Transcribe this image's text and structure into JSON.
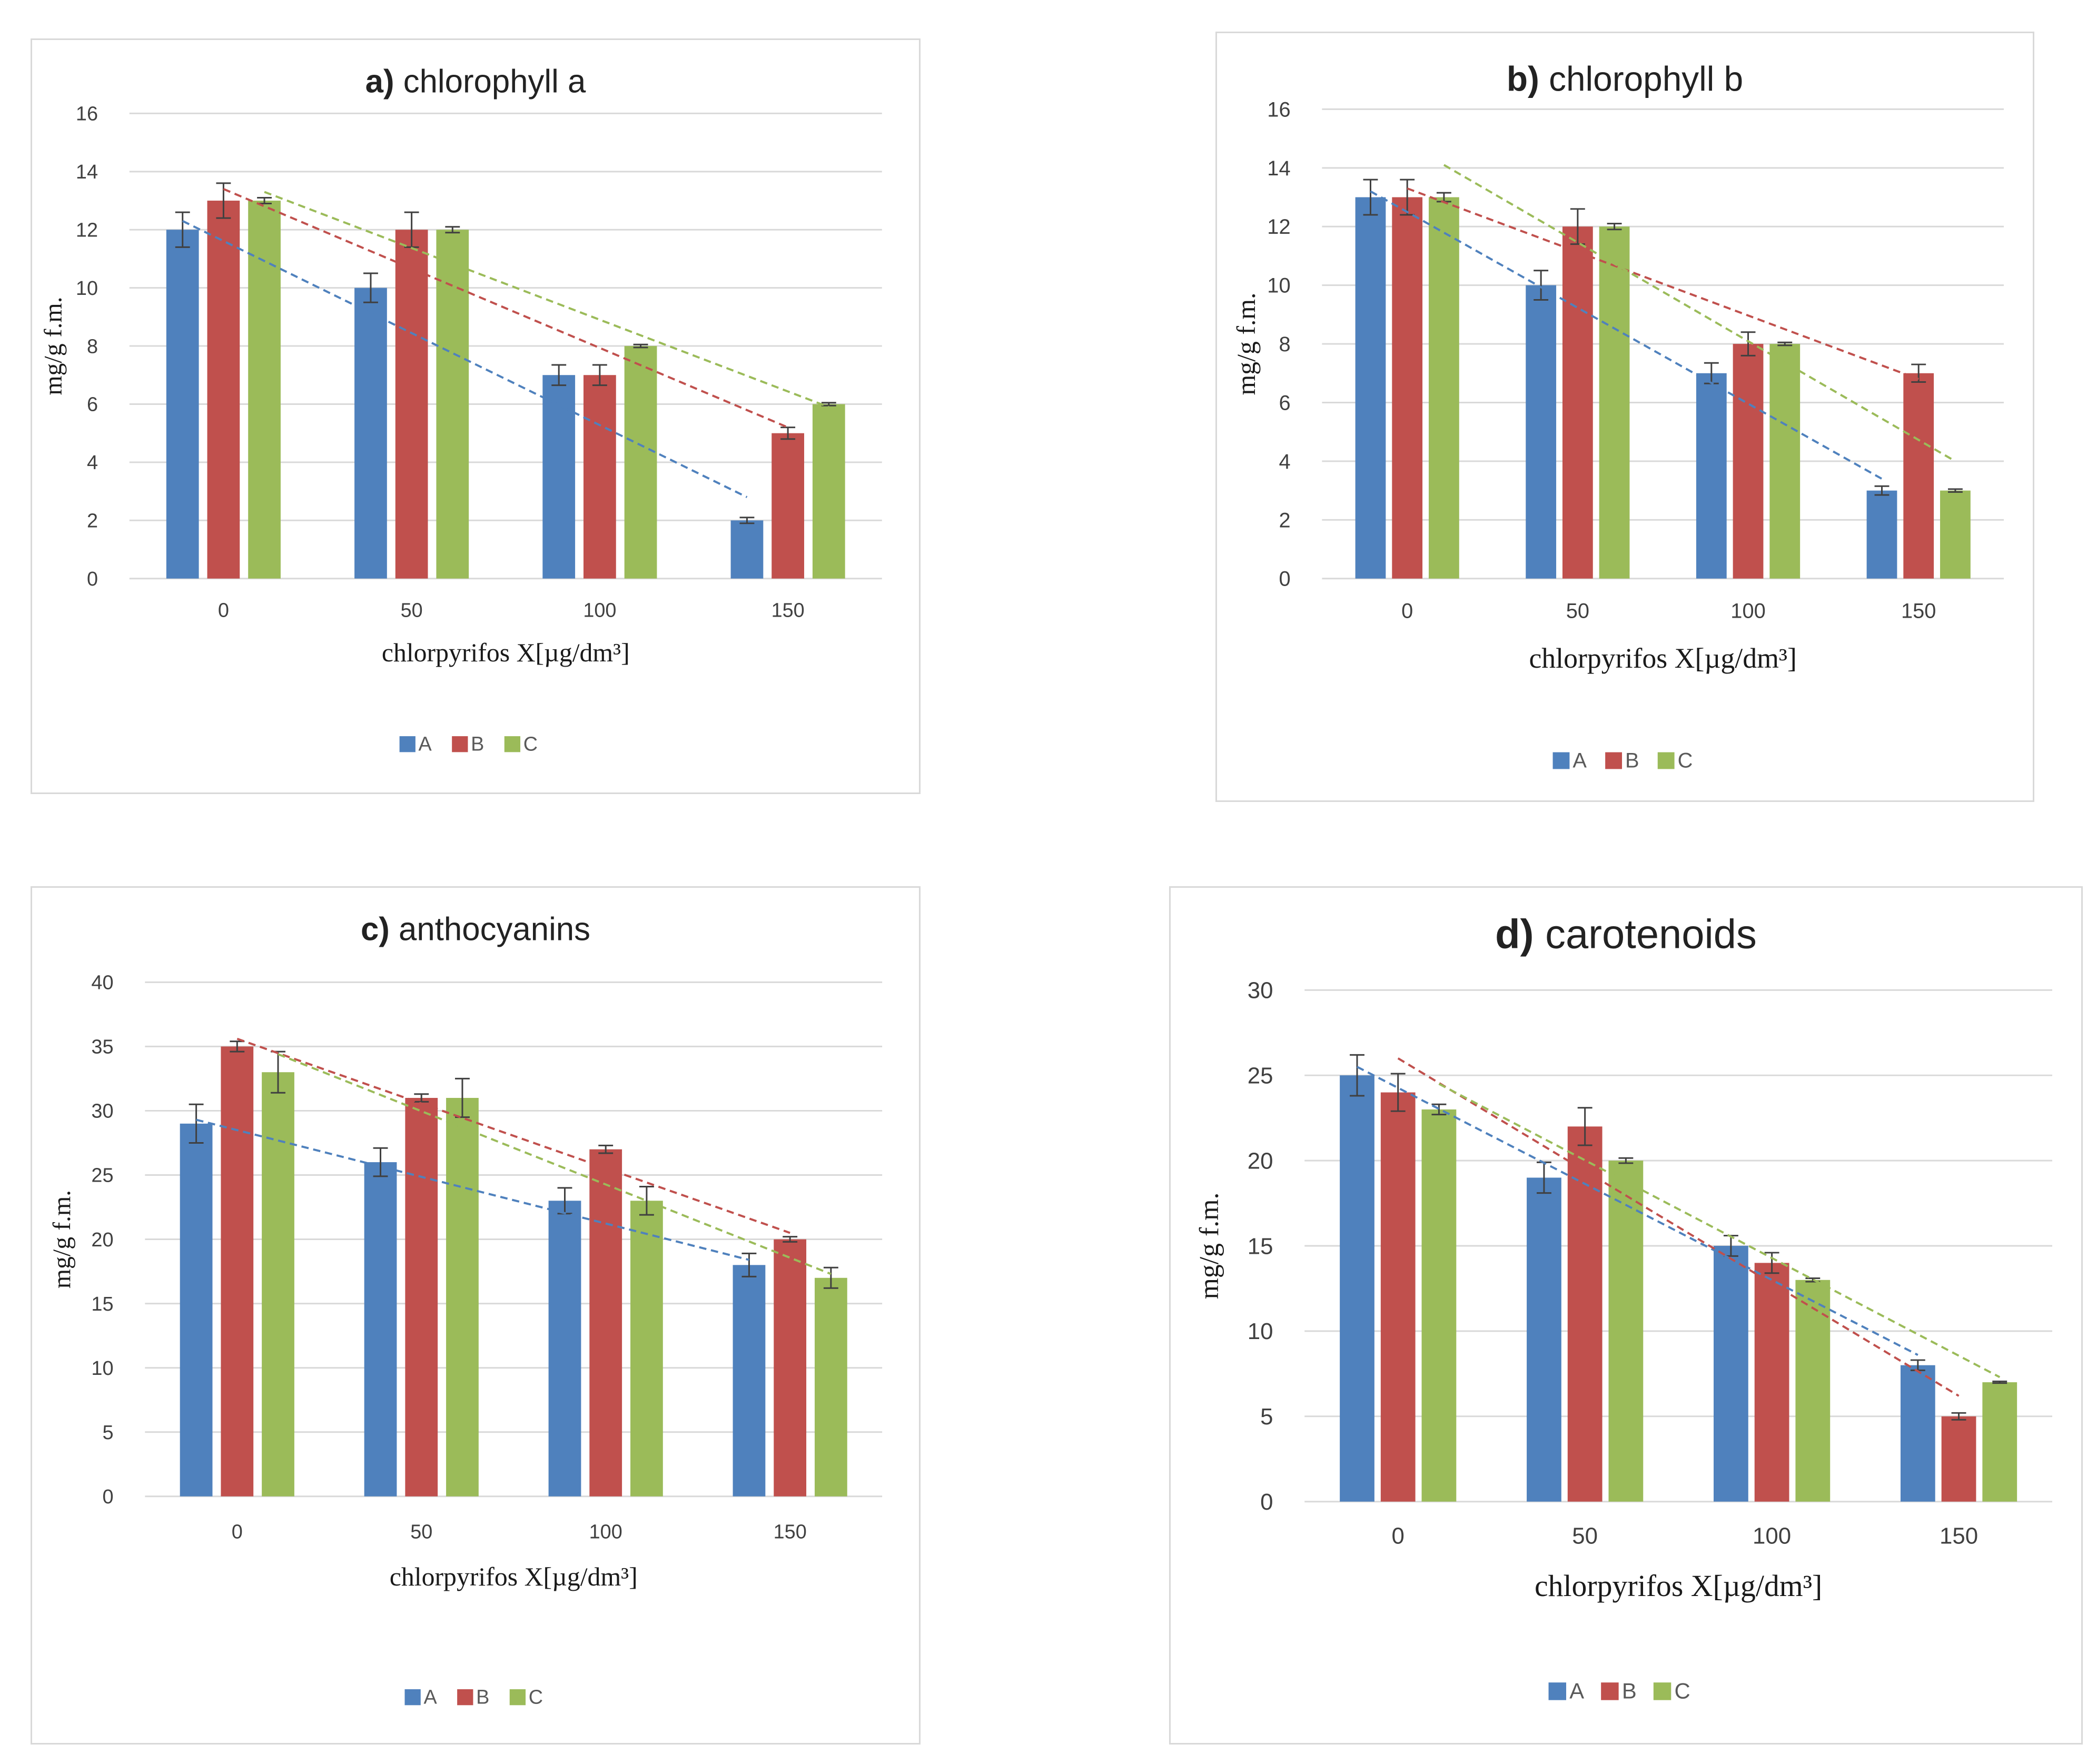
{
  "colors": {
    "A": "#4f81bd",
    "B": "#c0504d",
    "C": "#9bbb59",
    "grid": "#d9d9d9",
    "errbar": "#404040"
  },
  "chart_data": [
    {
      "id": "a",
      "type": "bar",
      "title_prefix": "a)",
      "title": "chlorophyll  a",
      "categories": [
        "0",
        "50",
        "100",
        "150"
      ],
      "series": [
        {
          "name": "A",
          "values": [
            12,
            10,
            7,
            2
          ],
          "errors": [
            0.6,
            0.5,
            0.35,
            0.1
          ]
        },
        {
          "name": "B",
          "values": [
            13,
            12,
            7,
            5
          ],
          "errors": [
            0.6,
            0.6,
            0.35,
            0.2
          ]
        },
        {
          "name": "C",
          "values": [
            13,
            12,
            8,
            6
          ],
          "errors": [
            0.1,
            0.1,
            0.05,
            0.05
          ]
        }
      ],
      "trendlines": [
        {
          "series": "A",
          "start": 12.3,
          "end": 2.8
        },
        {
          "series": "B",
          "start": 13.4,
          "end": 5.2
        },
        {
          "series": "C",
          "start": 13.3,
          "end": 5.9
        }
      ],
      "ylim": [
        0,
        16
      ],
      "yticks": [
        0,
        2,
        4,
        6,
        8,
        10,
        12,
        14,
        16
      ],
      "ytick_labels": [
        "0",
        "2",
        "4",
        "6",
        "8",
        "10",
        "12",
        "14",
        "16"
      ],
      "ylabel": "mg/g f.m.",
      "xlabel": "chlorpyrifos X[µg/dm³]",
      "legend": [
        "A",
        "B",
        "C"
      ],
      "legend_position": "bottom",
      "grid": true
    },
    {
      "id": "b",
      "type": "bar",
      "title_prefix": "b)",
      "title": "chlorophyll  b",
      "categories": [
        "0",
        "50",
        "100",
        "150"
      ],
      "series": [
        {
          "name": "A",
          "values": [
            13,
            10,
            7,
            3
          ],
          "errors": [
            0.6,
            0.5,
            0.35,
            0.15
          ]
        },
        {
          "name": "B",
          "values": [
            13,
            12,
            8,
            7
          ],
          "errors": [
            0.6,
            0.6,
            0.4,
            0.3
          ]
        },
        {
          "name": "C",
          "values": [
            13,
            12,
            8,
            3
          ],
          "errors": [
            0.15,
            0.1,
            0.05,
            0.05
          ]
        }
      ],
      "trendlines": [
        {
          "series": "A",
          "start": 13.2,
          "end": 3.4
        },
        {
          "series": "B",
          "start": 13.3,
          "end": 6.8
        },
        {
          "series": "C",
          "start": 14.1,
          "end": 4.0
        }
      ],
      "ylim": [
        0,
        16
      ],
      "yticks": [
        0,
        2,
        4,
        6,
        8,
        10,
        12,
        14,
        16
      ],
      "ytick_labels": [
        "0",
        "2",
        "4",
        "6",
        "8",
        "10",
        "12",
        "14",
        "16"
      ],
      "ylabel": "mg/g f.m.",
      "xlabel": "chlorpyrifos X[µg/dm³]",
      "legend": [
        "A",
        "B",
        "C"
      ],
      "legend_position": "bottom",
      "grid": true
    },
    {
      "id": "c",
      "type": "bar",
      "title_prefix": "c)",
      "title": "anthocyanins",
      "categories": [
        "0",
        "50",
        "100",
        "150"
      ],
      "series": [
        {
          "name": "A",
          "values": [
            29,
            26,
            23,
            18
          ],
          "errors": [
            1.5,
            1.1,
            1.0,
            0.9
          ]
        },
        {
          "name": "B",
          "values": [
            35,
            31,
            27,
            20
          ],
          "errors": [
            0.4,
            0.3,
            0.3,
            0.2
          ]
        },
        {
          "name": "C",
          "values": [
            33,
            31,
            23,
            17
          ],
          "errors": [
            1.6,
            1.5,
            1.1,
            0.8
          ]
        }
      ],
      "trendlines": [
        {
          "series": "A",
          "start": 29.3,
          "end": 18.4
        },
        {
          "series": "B",
          "start": 35.6,
          "end": 20.5
        },
        {
          "series": "C",
          "start": 34.4,
          "end": 17.3
        }
      ],
      "ylim": [
        0,
        40
      ],
      "yticks": [
        0,
        5,
        10,
        15,
        20,
        25,
        30,
        35,
        40
      ],
      "ytick_labels": [
        "0",
        "5",
        "10",
        "15",
        "20",
        "25",
        "30",
        "35",
        "40"
      ],
      "ylabel": "mg/g f.m.",
      "xlabel": "chlorpyrifos X[µg/dm³]",
      "legend": [
        "A",
        "B",
        "C"
      ],
      "legend_position": "bottom",
      "grid": true
    },
    {
      "id": "d",
      "type": "bar",
      "title_prefix": "d)",
      "title": "carotenoids",
      "categories": [
        "0",
        "50",
        "100",
        "150"
      ],
      "series": [
        {
          "name": "A",
          "values": [
            25,
            19,
            15,
            8
          ],
          "errors": [
            1.2,
            0.9,
            0.6,
            0.3
          ]
        },
        {
          "name": "B",
          "values": [
            24,
            22,
            14,
            5
          ],
          "errors": [
            1.1,
            1.1,
            0.6,
            0.2
          ]
        },
        {
          "name": "C",
          "values": [
            23,
            20,
            13,
            7
          ],
          "errors": [
            0.3,
            0.15,
            0.1,
            0.05
          ]
        }
      ],
      "trendlines": [
        {
          "series": "A",
          "start": 25.5,
          "end": 8.6
        },
        {
          "series": "B",
          "start": 26.0,
          "end": 6.2
        },
        {
          "series": "C",
          "start": 24.5,
          "end": 7.3
        }
      ],
      "ylim": [
        0,
        30
      ],
      "yticks": [
        0,
        5,
        10,
        15,
        20,
        25,
        30
      ],
      "ytick_labels": [
        "0",
        "5",
        "10",
        "15",
        "20",
        "25",
        "30"
      ],
      "ylabel": "mg/g f.m.",
      "xlabel": "chlorpyrifos X[µg/dm³]",
      "legend": [
        "A",
        "B",
        "C"
      ],
      "legend_position": "bottom",
      "grid": true
    }
  ]
}
